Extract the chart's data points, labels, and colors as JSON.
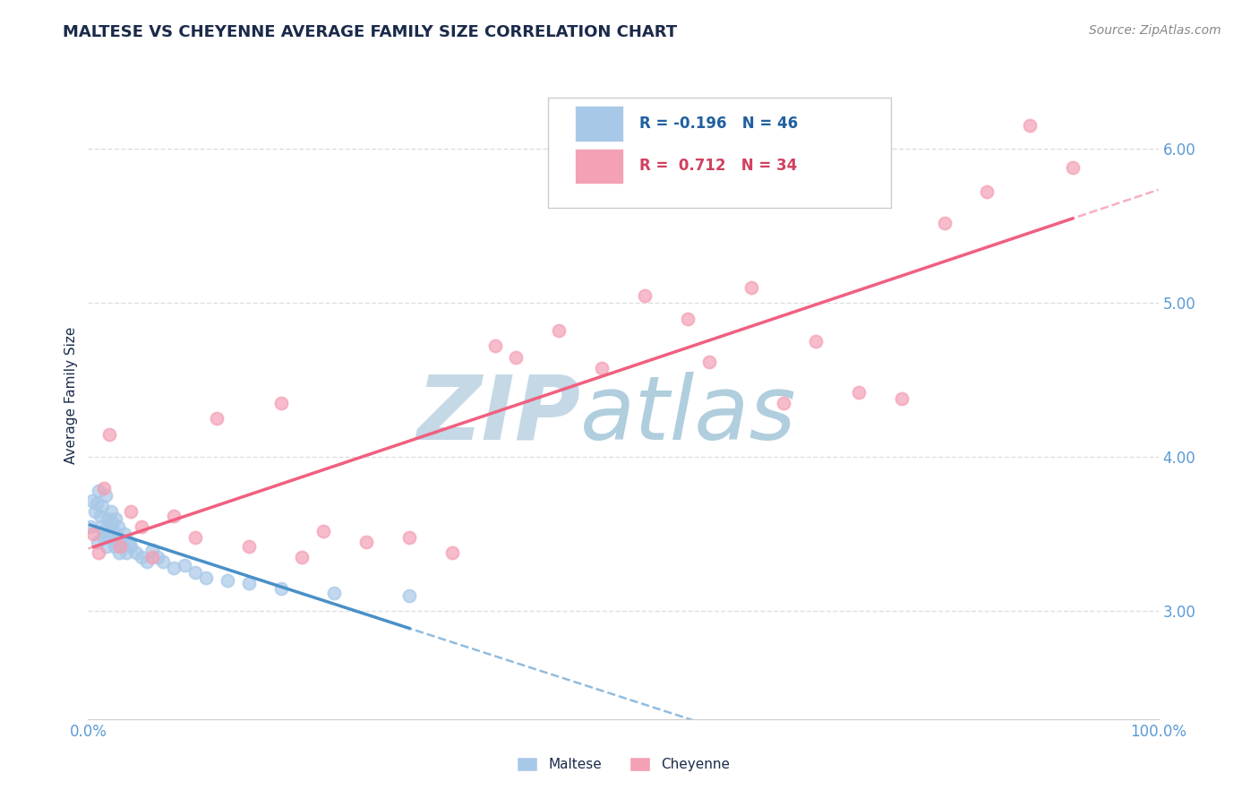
{
  "title": "MALTESE VS CHEYENNE AVERAGE FAMILY SIZE CORRELATION CHART",
  "source": "Source: ZipAtlas.com",
  "ylabel": "Average Family Size",
  "xlim": [
    0.0,
    1.0
  ],
  "ylim": [
    2.3,
    6.5
  ],
  "yticks": [
    3.0,
    4.0,
    5.0,
    6.0
  ],
  "xticks": [
    0.0,
    1.0
  ],
  "xticklabels": [
    "0.0%",
    "100.0%"
  ],
  "yticklabels": [
    "3.00",
    "4.00",
    "5.00",
    "6.00"
  ],
  "maltese_R": -0.196,
  "maltese_N": 46,
  "cheyenne_R": 0.712,
  "cheyenne_N": 34,
  "maltese_color": "#a8c8e8",
  "cheyenne_color": "#f4a0b5",
  "maltese_line_color": "#4a90c8",
  "cheyenne_line_color": "#f06080",
  "watermark_zip_color": "#c8dce8",
  "watermark_atlas_color": "#b8d0e0",
  "title_color": "#1a2a4a",
  "axis_label_color": "#1a2a4a",
  "tick_label_color": "#5b9bd5",
  "legend_R_color_maltese": "#2060a0",
  "legend_R_color_cheyenne": "#d04060",
  "grid_color": "#d8d8d8",
  "maltese_x": [
    0.002,
    0.004,
    0.006,
    0.008,
    0.009,
    0.01,
    0.011,
    0.012,
    0.013,
    0.014,
    0.015,
    0.016,
    0.017,
    0.018,
    0.019,
    0.02,
    0.021,
    0.022,
    0.023,
    0.024,
    0.025,
    0.026,
    0.027,
    0.028,
    0.029,
    0.03,
    0.032,
    0.034,
    0.036,
    0.038,
    0.04,
    0.045,
    0.05,
    0.055,
    0.06,
    0.065,
    0.07,
    0.08,
    0.09,
    0.1,
    0.11,
    0.13,
    0.15,
    0.18,
    0.23,
    0.3
  ],
  "maltese_y": [
    3.55,
    3.72,
    3.65,
    3.7,
    3.45,
    3.78,
    3.62,
    3.55,
    3.68,
    3.52,
    3.48,
    3.75,
    3.42,
    3.6,
    3.55,
    3.5,
    3.65,
    3.58,
    3.45,
    3.52,
    3.42,
    3.6,
    3.48,
    3.55,
    3.38,
    3.45,
    3.42,
    3.5,
    3.38,
    3.45,
    3.42,
    3.38,
    3.35,
    3.32,
    3.4,
    3.35,
    3.32,
    3.28,
    3.3,
    3.25,
    3.22,
    3.2,
    3.18,
    3.15,
    3.12,
    3.1
  ],
  "cheyenne_x": [
    0.005,
    0.01,
    0.015,
    0.02,
    0.03,
    0.04,
    0.05,
    0.06,
    0.08,
    0.1,
    0.12,
    0.15,
    0.18,
    0.2,
    0.22,
    0.26,
    0.3,
    0.34,
    0.38,
    0.4,
    0.44,
    0.48,
    0.52,
    0.56,
    0.58,
    0.62,
    0.65,
    0.68,
    0.72,
    0.76,
    0.8,
    0.84,
    0.88,
    0.92
  ],
  "cheyenne_y": [
    3.5,
    3.38,
    3.8,
    4.15,
    3.42,
    3.65,
    3.55,
    3.35,
    3.62,
    3.48,
    4.25,
    3.42,
    4.35,
    3.35,
    3.52,
    3.45,
    3.48,
    3.38,
    4.72,
    4.65,
    4.82,
    4.58,
    5.05,
    4.9,
    4.62,
    5.1,
    4.35,
    4.75,
    4.42,
    4.38,
    5.52,
    5.72,
    6.15,
    5.88
  ],
  "title_fontsize": 13,
  "axis_fontsize": 11,
  "tick_fontsize": 12,
  "source_fontsize": 10
}
